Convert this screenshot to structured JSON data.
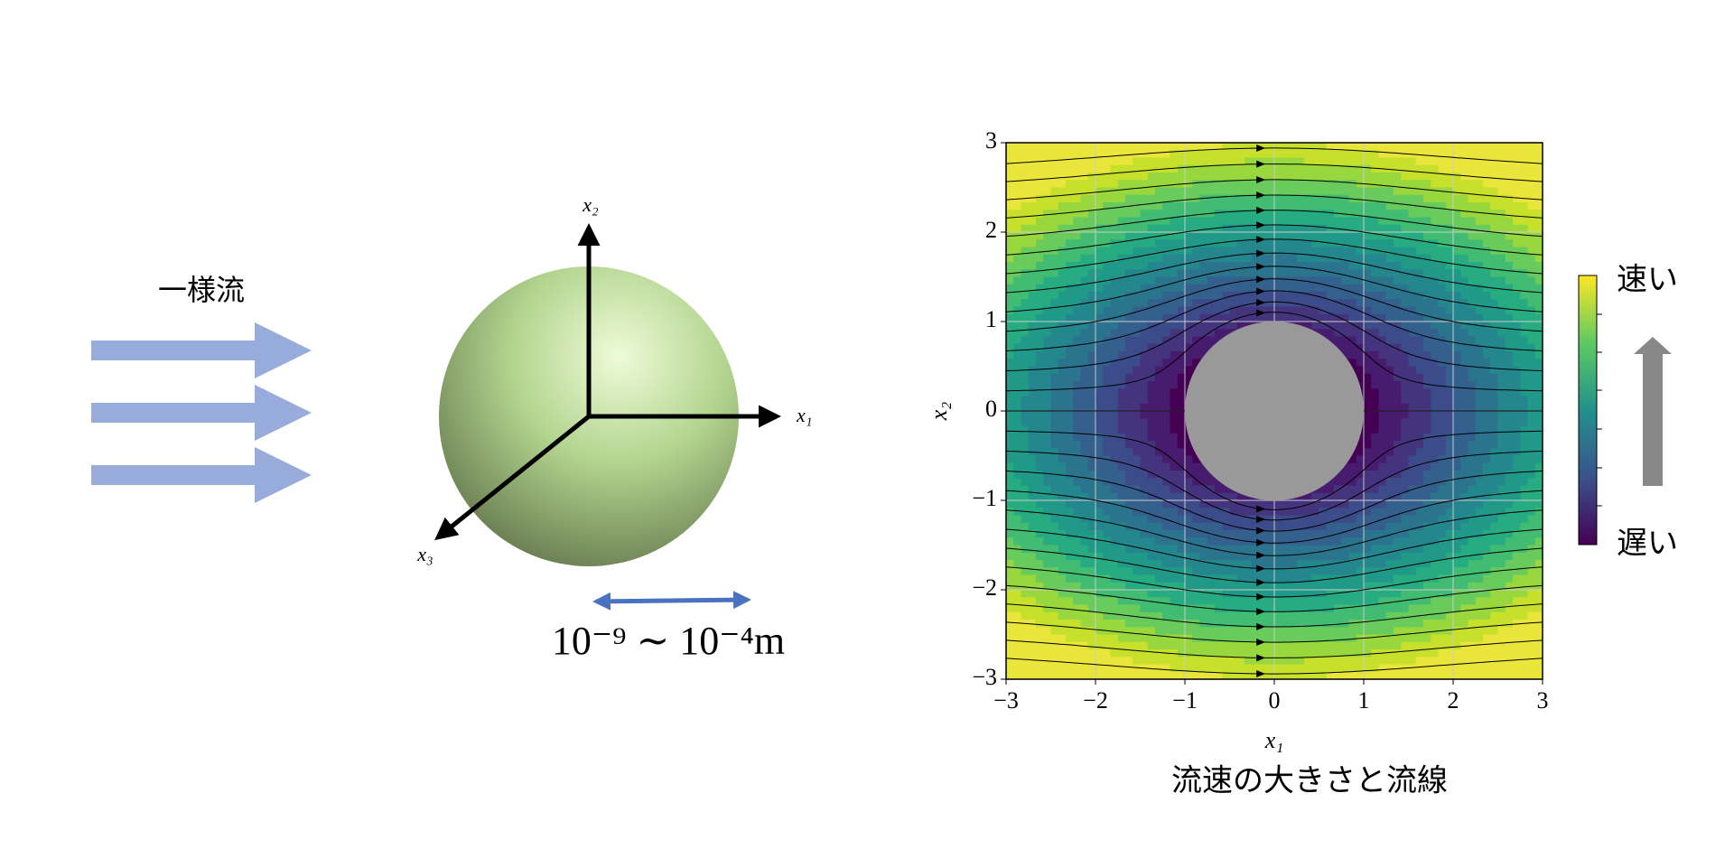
{
  "left": {
    "flow_label": "一様流",
    "axis_labels": [
      "x₁",
      "x₂",
      "x₃"
    ],
    "size_label": "10⁻⁹ ∼ 10⁻⁴m"
  },
  "chart_data": {
    "type": "contour",
    "title": "流速の大きさと流線",
    "xlabel": "x₁",
    "ylabel": "x₂",
    "xlim": [
      -3,
      3
    ],
    "ylim": [
      -3,
      3
    ],
    "xticks": [
      {
        "value": -3,
        "label": "−3"
      },
      {
        "value": -2,
        "label": "−2"
      },
      {
        "value": -1,
        "label": "−1"
      },
      0,
      1,
      2,
      3
    ],
    "yticks": [
      {
        "value": -3,
        "label": "−3"
      },
      {
        "value": -2,
        "label": "−2"
      },
      {
        "value": -1,
        "label": "−1"
      },
      0,
      1,
      2,
      3
    ],
    "grid": true,
    "colorbar_labels": [
      "速い",
      "遅い"
    ]
  }
}
